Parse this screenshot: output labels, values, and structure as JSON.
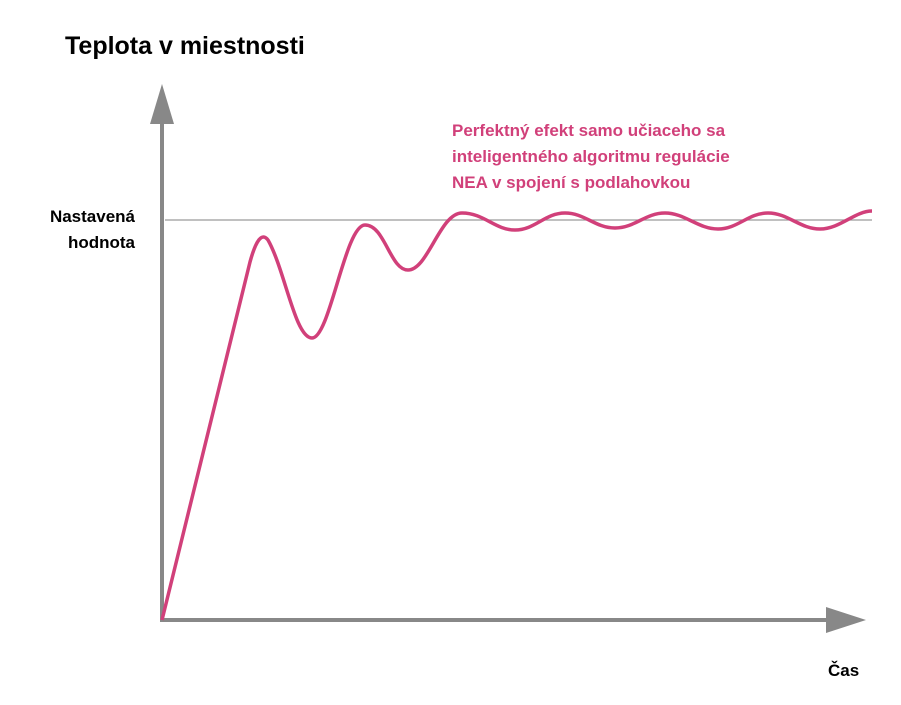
{
  "title": "Teplota v miestnosti",
  "setpoint_label": [
    "Nastavená",
    "hodnota"
  ],
  "annotation": [
    "Perfektný efekt samo učiaceho sa",
    "inteligentného algoritmu regulácie",
    "NEA v spojení s podlahovkou"
  ],
  "x_label": "Čas"
}
